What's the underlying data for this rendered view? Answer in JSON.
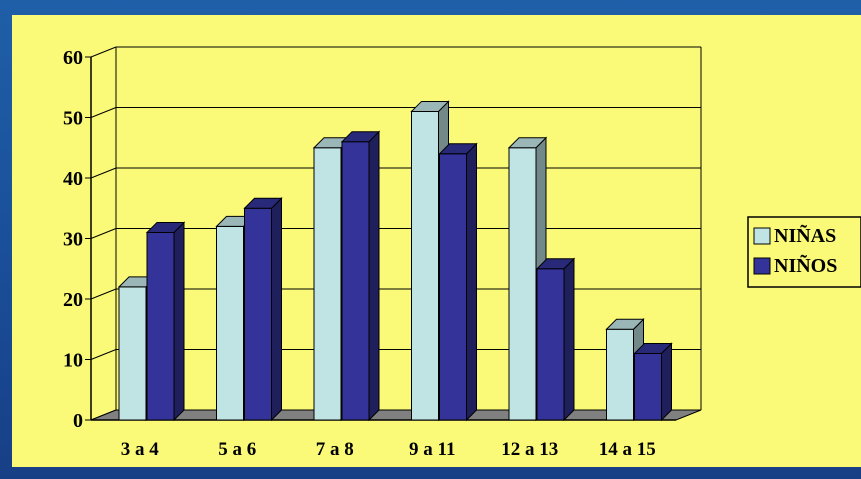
{
  "chart_data": {
    "type": "bar",
    "title": "",
    "xlabel": "",
    "ylabel": "",
    "categories": [
      "3 a 4",
      "5 a 6",
      "7 a 8",
      "9 a 11",
      "12 a 13",
      "14 a 15"
    ],
    "series": [
      {
        "name": "NIÑAS",
        "values": [
          22,
          32,
          45,
          51,
          45,
          15
        ],
        "color": "#c0e4e4"
      },
      {
        "name": "NIÑOS",
        "values": [
          31,
          35,
          46,
          44,
          25,
          11
        ],
        "color": "#333399"
      }
    ],
    "ylim": [
      0,
      60
    ],
    "yticks": [
      "0",
      "10",
      "20",
      "30",
      "40",
      "50",
      "60"
    ],
    "grid": true,
    "legend_position": "right",
    "style": "3d-clustered-bar"
  },
  "colors": {
    "page_background": "#1a4e98",
    "plot_background": "#fafa78",
    "floor": "#808080"
  }
}
